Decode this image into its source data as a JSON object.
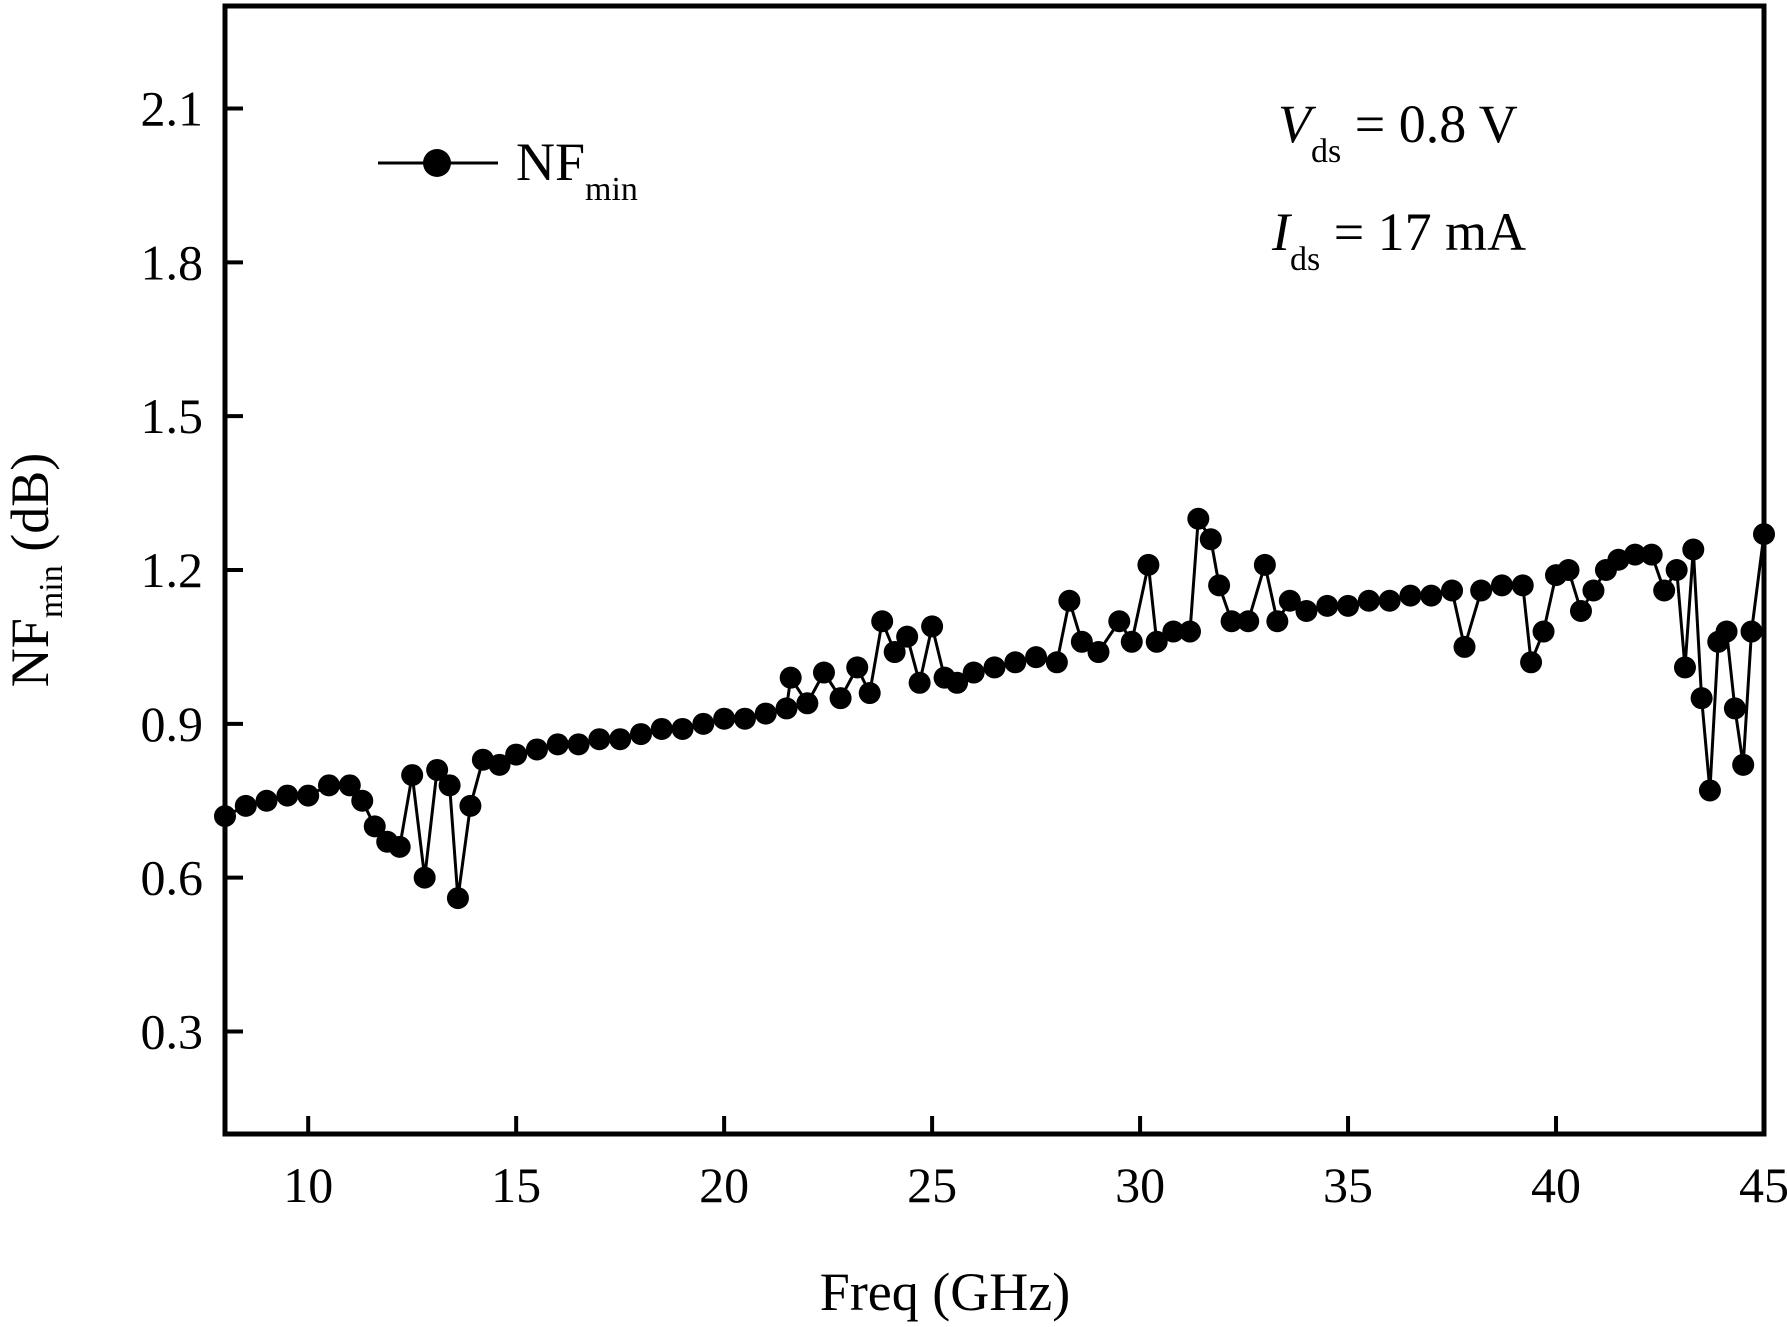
{
  "chart_data": {
    "type": "line",
    "xlabel": "Freq (GHz)",
    "ylabel": {
      "main": "NF",
      "sub": "min",
      "unit": " (dB)"
    },
    "xlim": [
      8,
      45
    ],
    "ylim": [
      0.1,
      2.3
    ],
    "x_ticks": [
      10,
      15,
      20,
      25,
      30,
      35,
      40,
      45
    ],
    "y_ticks": [
      0.3,
      0.6,
      0.9,
      1.2,
      1.5,
      1.8,
      2.1
    ],
    "x_tick_labels": [
      "10",
      "15",
      "20",
      "25",
      "30",
      "35",
      "40",
      "45"
    ],
    "y_tick_labels": [
      "0.3",
      "0.6",
      "0.9",
      "1.2",
      "1.5",
      "1.8",
      "2.1"
    ],
    "grid": false,
    "legend_position": "top-left",
    "annotation": {
      "vds": {
        "symbol": "V",
        "sub": "ds",
        "rest": " = 0.8 V"
      },
      "ids": {
        "symbol": "I",
        "sub": "ds",
        "rest": " = 17 mA"
      }
    },
    "series": [
      {
        "name": {
          "main": "NF",
          "sub": "min"
        },
        "marker": "circle",
        "color": "#000000",
        "x": [
          8.0,
          8.5,
          9.0,
          9.5,
          10.0,
          10.5,
          11.0,
          11.3,
          11.6,
          11.9,
          12.2,
          12.5,
          12.8,
          13.1,
          13.4,
          13.6,
          13.9,
          14.2,
          14.6,
          15.0,
          15.5,
          16.0,
          16.5,
          17.0,
          17.5,
          18.0,
          18.5,
          19.0,
          19.5,
          20.0,
          20.5,
          21.0,
          21.5,
          21.6,
          22.0,
          22.4,
          22.8,
          23.2,
          23.5,
          23.8,
          24.1,
          24.4,
          24.7,
          25.0,
          25.3,
          25.6,
          26.0,
          26.5,
          27.0,
          27.5,
          28.0,
          28.3,
          28.6,
          29.0,
          29.5,
          29.8,
          30.2,
          30.4,
          30.8,
          31.2,
          31.4,
          31.7,
          31.9,
          32.2,
          32.6,
          33.0,
          33.3,
          33.6,
          34.0,
          34.5,
          35.0,
          35.5,
          36.0,
          36.5,
          37.0,
          37.5,
          37.8,
          38.2,
          38.7,
          39.2,
          39.4,
          39.7,
          40.0,
          40.3,
          40.6,
          40.9,
          41.2,
          41.5,
          41.9,
          42.3,
          42.6,
          42.9,
          43.1,
          43.3,
          43.5,
          43.7,
          43.9,
          44.1,
          44.3,
          44.5,
          44.7,
          45.0
        ],
        "y": [
          0.72,
          0.74,
          0.75,
          0.76,
          0.76,
          0.78,
          0.78,
          0.75,
          0.7,
          0.67,
          0.66,
          0.8,
          0.6,
          0.81,
          0.78,
          0.56,
          0.74,
          0.83,
          0.82,
          0.84,
          0.85,
          0.86,
          0.86,
          0.87,
          0.87,
          0.88,
          0.89,
          0.89,
          0.9,
          0.91,
          0.91,
          0.92,
          0.93,
          0.99,
          0.94,
          1.0,
          0.95,
          1.01,
          0.96,
          1.1,
          1.04,
          1.07,
          0.98,
          1.09,
          0.99,
          0.98,
          1.0,
          1.01,
          1.02,
          1.03,
          1.02,
          1.14,
          1.06,
          1.04,
          1.1,
          1.06,
          1.21,
          1.06,
          1.08,
          1.08,
          1.3,
          1.26,
          1.17,
          1.1,
          1.1,
          1.21,
          1.1,
          1.14,
          1.12,
          1.13,
          1.13,
          1.14,
          1.14,
          1.15,
          1.15,
          1.16,
          1.05,
          1.16,
          1.17,
          1.17,
          1.02,
          1.08,
          1.19,
          1.2,
          1.12,
          1.16,
          1.2,
          1.22,
          1.23,
          1.23,
          1.16,
          1.2,
          1.01,
          1.24,
          0.95,
          0.77,
          1.06,
          1.08,
          0.93,
          0.82,
          1.08,
          1.27
        ]
      }
    ]
  }
}
